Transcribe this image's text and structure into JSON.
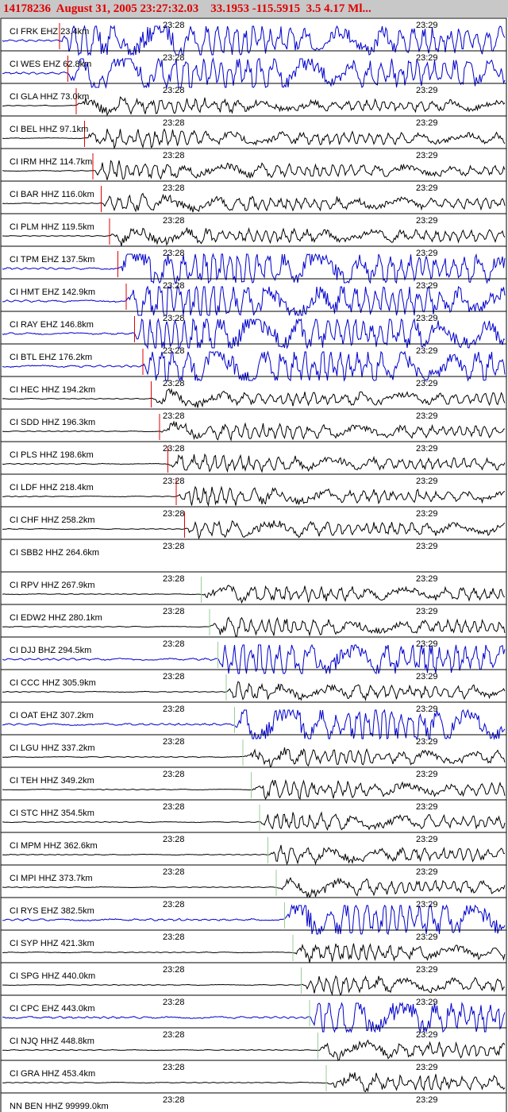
{
  "header": {
    "title": "14178236  August 31, 2005 23:27:32.03    33.1953 -115.5915  3.5 4.17 Ml..."
  },
  "time_marks": [
    "23:28",
    "23:29"
  ],
  "traces": [
    {
      "label": "CI FRK EHZ 23.4km",
      "color": "#0000cc"
    },
    {
      "label": "CI WES EHZ 62.8km",
      "color": "#0000cc"
    },
    {
      "label": "CI GLA HHZ 73.0km",
      "color": "#000000"
    },
    {
      "label": "CI BEL HHZ 97.1km",
      "color": "#000000"
    },
    {
      "label": "CI IRM HHZ 114.7km",
      "color": "#000000"
    },
    {
      "label": "CI BAR HHZ 116.0km",
      "color": "#000000"
    },
    {
      "label": "CI PLM HHZ 119.5km",
      "color": "#000000"
    },
    {
      "label": "CI TPM EHZ 137.5km",
      "color": "#0000cc"
    },
    {
      "label": "CI HMT EHZ 142.9km",
      "color": "#0000cc"
    },
    {
      "label": "CI RAY EHZ 146.8km",
      "color": "#0000cc"
    },
    {
      "label": "CI BTL EHZ 176.2km",
      "color": "#0000cc"
    },
    {
      "label": "CI HEC HHZ 194.2km",
      "color": "#000000"
    },
    {
      "label": "CI SDD HHZ 196.3km",
      "color": "#000000"
    },
    {
      "label": "CI PLS HHZ 198.6km",
      "color": "#000000"
    },
    {
      "label": "CI LDF HHZ 218.4km",
      "color": "#000000"
    },
    {
      "label": "CI CHF HHZ 258.2km",
      "color": "#000000"
    },
    {
      "label": "CI SBB2 HHZ 264.6km",
      "color": null
    },
    {
      "label": "CI RPV HHZ 267.9km",
      "color": "#000000"
    },
    {
      "label": "CI EDW2 HHZ 280.1km",
      "color": "#000000"
    },
    {
      "label": "CI DJJ BHZ 294.5km",
      "color": "#0000cc"
    },
    {
      "label": "CI CCC HHZ 305.9km",
      "color": "#000000"
    },
    {
      "label": "CI OAT EHZ 307.2km",
      "color": "#0000cc"
    },
    {
      "label": "CI LGU HHZ 337.2km",
      "color": "#000000"
    },
    {
      "label": "CI TEH HHZ 349.2km",
      "color": "#000000"
    },
    {
      "label": "CI STC HHZ 354.5km",
      "color": "#000000"
    },
    {
      "label": "CI MPM HHZ 362.6km",
      "color": "#000000"
    },
    {
      "label": "CI MPI HHZ 373.7km",
      "color": "#000000"
    },
    {
      "label": "CI RYS EHZ 382.5km",
      "color": "#0000cc"
    },
    {
      "label": "CI SYP HHZ 421.3km",
      "color": "#000000"
    },
    {
      "label": "CI SPG HHZ 440.0km",
      "color": "#000000"
    },
    {
      "label": "CI CPC EHZ 443.0km",
      "color": "#0000cc"
    },
    {
      "label": "CI NJQ HHZ 448.8km",
      "color": "#000000"
    },
    {
      "label": "CI GRA HHZ 453.4km",
      "color": "#000000"
    },
    {
      "label": "NN BEN HHZ 99999.0km",
      "color": null
    }
  ]
}
